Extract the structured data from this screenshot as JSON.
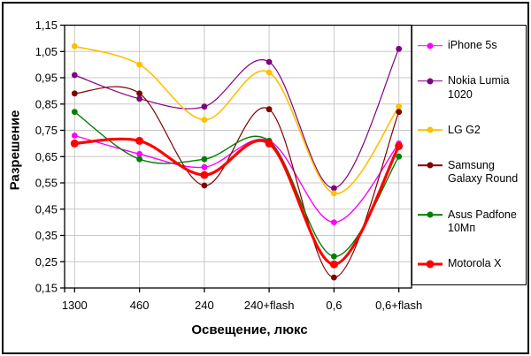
{
  "chart_data": {
    "type": "line",
    "title": "",
    "xlabel": "Освещение, люкс",
    "ylabel": "Разрешение",
    "categories": [
      "1300",
      "460",
      "240",
      "240+flash",
      "0,6",
      "0,6+flash"
    ],
    "ylim": [
      0.15,
      1.15
    ],
    "ytick_step": 0.1,
    "ytick_labels": [
      "1,15",
      "1,05",
      "0,95",
      "0,85",
      "0,75",
      "0,65",
      "0,55",
      "0,45",
      "0,35",
      "0,25",
      "0,15"
    ],
    "grid": true,
    "line_style": "smooth",
    "legend_position": "right",
    "colors": {
      "gridline": "#c8c8c8",
      "axis": "#000000",
      "background": "#ffffff",
      "text": "#000000"
    },
    "series": [
      {
        "name": "iPhone 5s",
        "color": "#ff00ff",
        "line_width": 1.4,
        "marker_size": 3.4,
        "values": [
          0.73,
          0.66,
          0.61,
          0.71,
          0.4,
          0.7
        ]
      },
      {
        "name": "Nokia Lumia 1020",
        "color": "#800080",
        "line_width": 1.2,
        "marker_size": 3.4,
        "values": [
          0.96,
          0.87,
          0.84,
          1.01,
          0.53,
          1.06
        ]
      },
      {
        "name": "LG G2",
        "color": "#ffc000",
        "line_width": 1.6,
        "marker_size": 3.4,
        "values": [
          1.07,
          1.0,
          0.79,
          0.97,
          0.51,
          0.84
        ]
      },
      {
        "name": "Samsung Galaxy Round",
        "color": "#800000",
        "line_width": 1.2,
        "marker_size": 3.4,
        "values": [
          0.89,
          0.89,
          0.54,
          0.83,
          0.19,
          0.82
        ]
      },
      {
        "name": "Asus Padfone 10Мп",
        "color": "#008000",
        "line_width": 1.4,
        "marker_size": 3.4,
        "values": [
          0.82,
          0.64,
          0.64,
          0.71,
          0.27,
          0.65
        ]
      },
      {
        "name": "Motorola X",
        "color": "#ff0000",
        "line_width": 3.2,
        "marker_size": 4.5,
        "values": [
          0.7,
          0.71,
          0.58,
          0.7,
          0.24,
          0.69
        ]
      }
    ]
  }
}
